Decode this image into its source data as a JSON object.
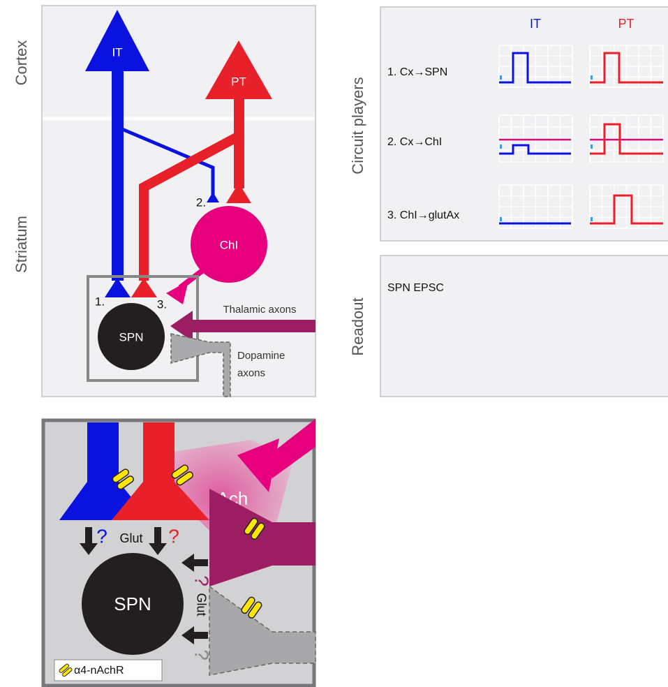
{
  "panel_a": {
    "region_labels": [
      "Cortex",
      "Striatum"
    ],
    "neurons": {
      "it": "IT",
      "pt": "PT",
      "chi": "ChI",
      "spn": "SPN"
    },
    "site_labels": [
      "1.",
      "2.",
      "3."
    ],
    "axon_labels": {
      "thalamic": "Thalamic axons",
      "dopamine": [
        "Dopamine",
        "axons"
      ]
    }
  },
  "panel_b": {
    "title": "Circuit players",
    "columns": [
      "IT",
      "PT"
    ],
    "rows": [
      "1. Cx→SPN",
      "2. Cx→ChI",
      "3. ChI→glutAx"
    ]
  },
  "panel_c": {
    "title": "Readout",
    "label": "SPN EPSC"
  },
  "panel_d": {
    "ach": "Ach",
    "glut_top": "Glut",
    "glut_side": "Glut",
    "question_marks": [
      "?",
      "?",
      "?",
      "?"
    ],
    "spn": "SPN",
    "legend": "α4-nAchR"
  }
}
